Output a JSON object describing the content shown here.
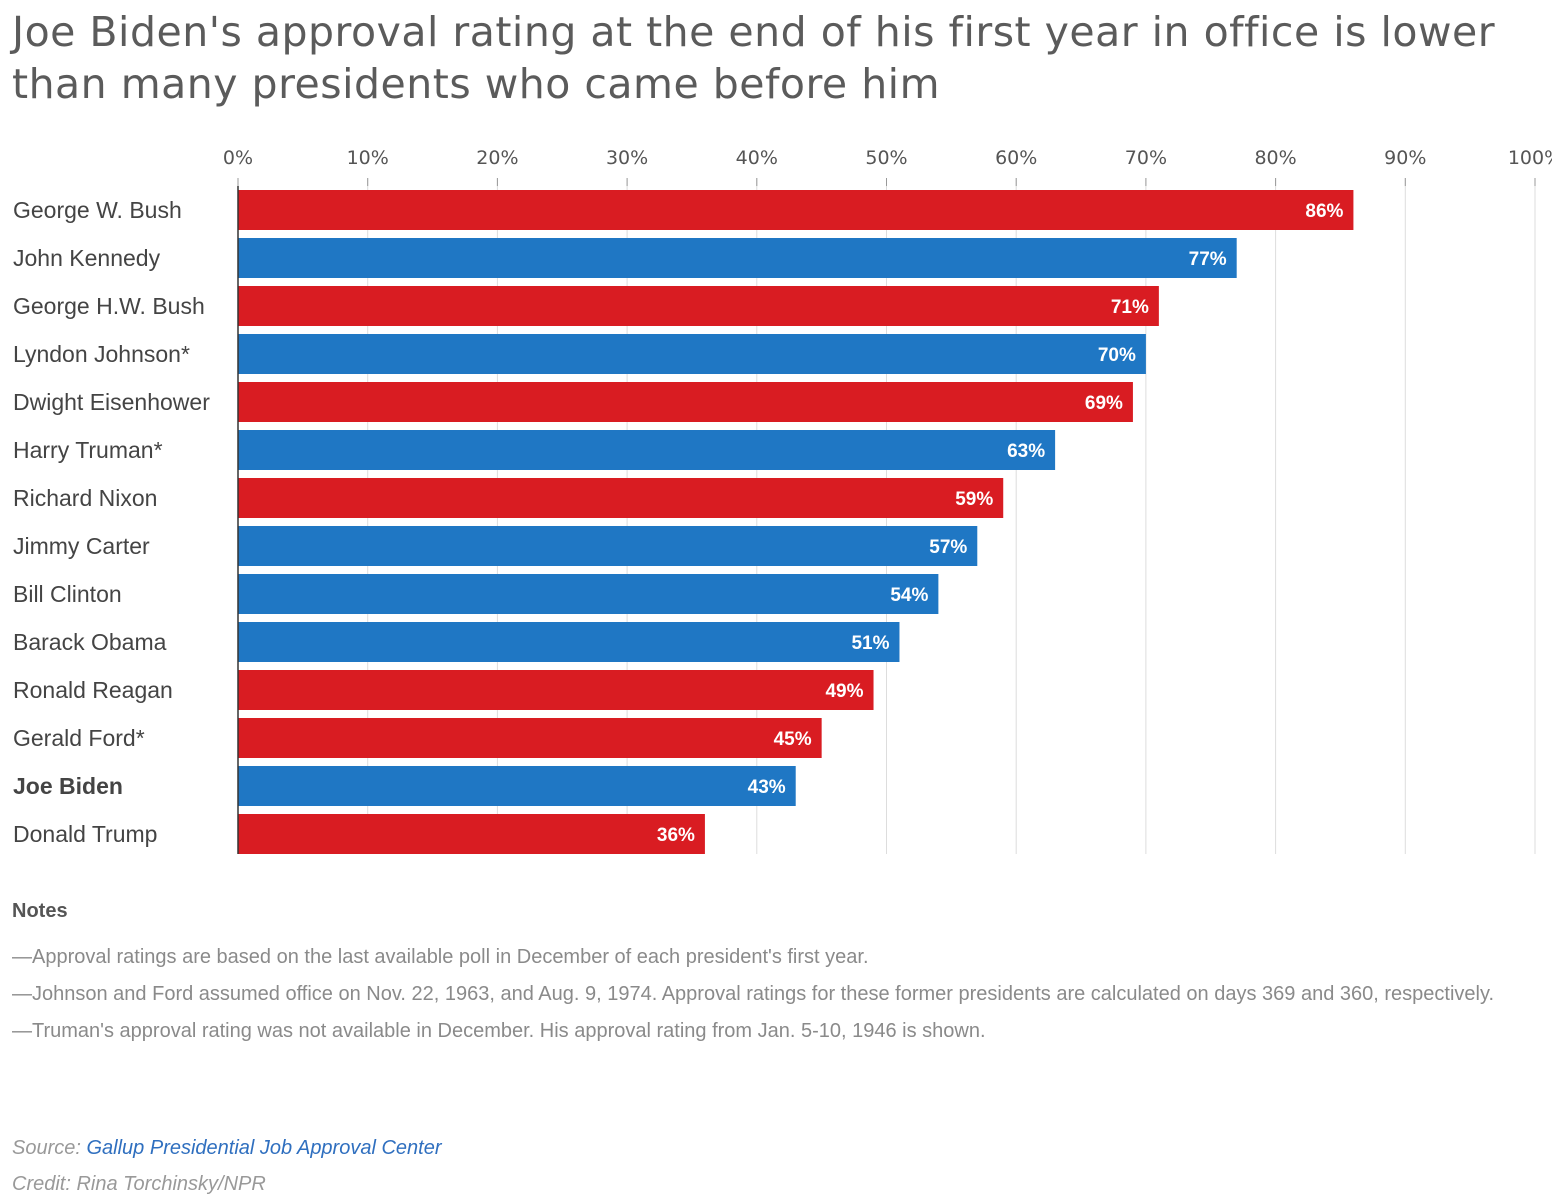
{
  "title": "Joe Biden's approval rating at the end of his first year in office is lower than many presidents who came before him",
  "colors": {
    "red": "#d91c22",
    "blue": "#1f77c4",
    "grid": "#dddddd",
    "axis": "#333333"
  },
  "chart_data": {
    "type": "bar",
    "orientation": "horizontal",
    "categories": [
      "George W. Bush",
      "John Kennedy",
      "George H.W. Bush",
      "Lyndon Johnson*",
      "Dwight Eisenhower",
      "Harry Truman*",
      "Richard Nixon",
      "Jimmy Carter",
      "Bill Clinton",
      "Barack Obama",
      "Ronald Reagan",
      "Gerald Ford*",
      "Joe Biden",
      "Donald Trump"
    ],
    "values": [
      86,
      77,
      71,
      70,
      69,
      63,
      59,
      57,
      54,
      51,
      49,
      45,
      43,
      36
    ],
    "data_labels": [
      "86%",
      "77%",
      "71%",
      "70%",
      "69%",
      "63%",
      "59%",
      "57%",
      "54%",
      "51%",
      "49%",
      "45%",
      "43%",
      "36%"
    ],
    "bar_colors": [
      "red",
      "blue",
      "red",
      "blue",
      "red",
      "blue",
      "red",
      "blue",
      "blue",
      "blue",
      "red",
      "red",
      "blue",
      "red"
    ],
    "highlight": "Joe Biden",
    "xlim": [
      0,
      100
    ],
    "ticks": [
      0,
      10,
      20,
      30,
      40,
      50,
      60,
      70,
      80,
      90,
      100
    ],
    "tick_labels": [
      "0%",
      "10%",
      "20%",
      "30%",
      "40%",
      "50%",
      "60%",
      "70%",
      "80%",
      "90%",
      "100%"
    ],
    "axis_position": "top",
    "grid": true
  },
  "notes": {
    "heading": "Notes",
    "lines": [
      "—Approval ratings are based on the last available poll in December of each president's first year.",
      "—Johnson and Ford assumed office on Nov. 22, 1963, and Aug. 9, 1974. Approval ratings for these former presidents are calculated on days 369 and 360, respectively.",
      "—Truman's approval rating was not available in December. His approval rating from Jan. 5-10, 1946 is shown."
    ]
  },
  "footer": {
    "source_prefix": "Source: ",
    "source_link": "Gallup Presidential Job Approval Center",
    "credit": "Credit: Rina Torchinsky/NPR"
  }
}
